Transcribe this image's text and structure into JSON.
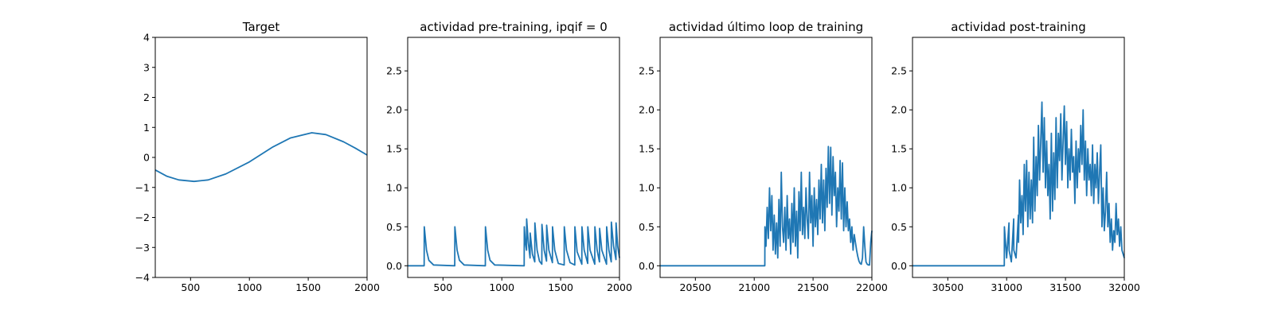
{
  "chart_data": [
    {
      "type": "line",
      "title": "Target",
      "xlim": [
        200,
        2000
      ],
      "ylim": [
        -4,
        4
      ],
      "xticks": [
        500,
        1000,
        1500,
        2000
      ],
      "xtick_labels": [
        "500",
        "1000",
        "1500",
        "2000"
      ],
      "yticks": [
        -4,
        -3,
        -2,
        -1,
        0,
        1,
        2,
        3,
        4
      ],
      "ytick_labels": [
        "−4",
        "−3",
        "−2",
        "−1",
        "0",
        "1",
        "2",
        "3",
        "4"
      ],
      "series": [
        {
          "x": [
            200,
            300,
            400,
            530,
            650,
            800,
            1000,
            1200,
            1350,
            1530,
            1650,
            1800,
            1900,
            2000
          ],
          "y": [
            -0.42,
            -0.63,
            -0.75,
            -0.8,
            -0.75,
            -0.55,
            -0.15,
            0.35,
            0.65,
            0.82,
            0.76,
            0.52,
            0.31,
            0.08
          ]
        }
      ]
    },
    {
      "type": "line",
      "title": "actividad pre-training, ipqif = 0",
      "xlim": [
        200,
        2000
      ],
      "ylim": [
        -0.15,
        2.93
      ],
      "xticks": [
        500,
        1000,
        1500,
        2000
      ],
      "xtick_labels": [
        "500",
        "1000",
        "1500",
        "2000"
      ],
      "yticks": [
        0.0,
        0.5,
        1.0,
        1.5,
        2.0,
        2.5
      ],
      "ytick_labels": [
        "0.0",
        "0.5",
        "1.0",
        "1.5",
        "2.0",
        "2.5"
      ],
      "series": [
        {
          "x": [
            200,
            340,
            341,
            360,
            380,
            420,
            600,
            601,
            620,
            640,
            680,
            860,
            861,
            880,
            900,
            940,
            1190,
            1191,
            1200,
            1210,
            1211,
            1225,
            1240,
            1241,
            1260,
            1280,
            1281,
            1300,
            1320,
            1340,
            1341,
            1360,
            1380,
            1381,
            1400,
            1430,
            1431,
            1450,
            1480,
            1530,
            1531,
            1550,
            1580,
            1620,
            1621,
            1640,
            1680,
            1681,
            1700,
            1730,
            1731,
            1750,
            1790,
            1791,
            1810,
            1830,
            1831,
            1850,
            1890,
            1891,
            1910,
            1930,
            1931,
            1950,
            1970,
            1971,
            1985,
            2000
          ],
          "y": [
            0,
            0,
            0.5,
            0.2,
            0.07,
            0.01,
            0,
            0.5,
            0.2,
            0.07,
            0.01,
            0,
            0.5,
            0.2,
            0.07,
            0.01,
            0,
            0.5,
            0.3,
            0.2,
            0.6,
            0.3,
            0.1,
            0.42,
            0.15,
            0.05,
            0.55,
            0.2,
            0.06,
            0.02,
            0.53,
            0.2,
            0.06,
            0.52,
            0.2,
            0.04,
            0.5,
            0.2,
            0.03,
            0.01,
            0.5,
            0.2,
            0.04,
            0.01,
            0.5,
            0.18,
            0.02,
            0.5,
            0.2,
            0.03,
            0.5,
            0.2,
            0.02,
            0.5,
            0.2,
            0.05,
            0.48,
            0.2,
            0.02,
            0.5,
            0.2,
            0.05,
            0.56,
            0.25,
            0.08,
            0.55,
            0.25,
            0.1
          ]
        }
      ]
    },
    {
      "type": "line",
      "title": "actividad último loop de training",
      "xlim": [
        20200,
        22000
      ],
      "ylim": [
        -0.15,
        2.93
      ],
      "xticks": [
        20500,
        21000,
        21500,
        22000
      ],
      "xtick_labels": [
        "20500",
        "21000",
        "21500",
        "22000"
      ],
      "yticks": [
        0.0,
        0.5,
        1.0,
        1.5,
        2.0,
        2.5
      ],
      "ytick_labels": [
        "0.0",
        "0.5",
        "1.0",
        "1.5",
        "2.0",
        "2.5"
      ],
      "series": [
        {
          "x": [
            20200,
            21090,
            21091,
            21100,
            21110,
            21120,
            21130,
            21140,
            21150,
            21160,
            21170,
            21180,
            21190,
            21200,
            21210,
            21220,
            21230,
            21240,
            21250,
            21260,
            21270,
            21280,
            21290,
            21300,
            21310,
            21320,
            21330,
            21340,
            21350,
            21360,
            21370,
            21380,
            21390,
            21400,
            21410,
            21420,
            21430,
            21440,
            21450,
            21460,
            21470,
            21480,
            21490,
            21500,
            21510,
            21520,
            21530,
            21540,
            21550,
            21560,
            21570,
            21580,
            21590,
            21600,
            21610,
            21620,
            21630,
            21640,
            21650,
            21660,
            21670,
            21680,
            21690,
            21700,
            21710,
            21720,
            21730,
            21740,
            21750,
            21760,
            21770,
            21780,
            21790,
            21800,
            21810,
            21820,
            21830,
            21840,
            21850,
            21860,
            21870,
            21880,
            21890,
            21900,
            21910,
            21920,
            21930,
            21940,
            21950,
            21960,
            21970,
            21980,
            21990,
            22000
          ],
          "y": [
            0,
            0,
            0.5,
            0.25,
            0.75,
            0.35,
            1.0,
            0.45,
            0.9,
            0.2,
            0.65,
            0.15,
            0.55,
            0.1,
            0.85,
            0.25,
            1.2,
            0.5,
            0.3,
            0.75,
            0.2,
            0.9,
            0.35,
            0.6,
            0.15,
            0.8,
            0.3,
            1.0,
            0.25,
            0.7,
            0.1,
            0.95,
            0.45,
            1.2,
            0.4,
            0.75,
            0.35,
            1.0,
            0.6,
            0.35,
            1.2,
            0.55,
            0.9,
            0.25,
            1.0,
            0.5,
            0.85,
            0.4,
            1.1,
            0.6,
            1.3,
            0.55,
            1.1,
            0.45,
            1.25,
            0.75,
            1.53,
            0.8,
            1.52,
            0.65,
            1.4,
            0.9,
            1.2,
            0.5,
            1.0,
            0.7,
            1.35,
            0.6,
            1.32,
            0.45,
            1.0,
            0.5,
            0.82,
            0.45,
            0.6,
            0.3,
            0.5,
            0.2,
            0.4,
            0.3,
            0.2,
            0.12,
            0.06,
            0.03,
            0.02,
            0.1,
            0.5,
            0.25,
            0.05,
            0.02,
            0.01,
            0.01,
            0.3,
            0.45
          ]
        }
      ]
    },
    {
      "type": "line",
      "title": "actividad post-training",
      "xlim": [
        30200,
        32000
      ],
      "ylim": [
        -0.15,
        2.93
      ],
      "xticks": [
        30500,
        31000,
        31500,
        32000
      ],
      "xtick_labels": [
        "30500",
        "31000",
        "31500",
        "32000"
      ],
      "yticks": [
        0.0,
        0.5,
        1.0,
        1.5,
        2.0,
        2.5
      ],
      "ytick_labels": [
        "0.0",
        "0.5",
        "1.0",
        "1.5",
        "2.0",
        "2.5"
      ],
      "series": [
        {
          "x": [
            30200,
            30980,
            30981,
            31000,
            31020,
            31021,
            31040,
            31060,
            31061,
            31080,
            31100,
            31101,
            31110,
            31120,
            31130,
            31140,
            31150,
            31160,
            31170,
            31180,
            31190,
            31200,
            31210,
            31220,
            31230,
            31240,
            31250,
            31260,
            31270,
            31280,
            31290,
            31300,
            31310,
            31320,
            31330,
            31340,
            31350,
            31360,
            31370,
            31380,
            31390,
            31400,
            31410,
            31420,
            31430,
            31440,
            31450,
            31460,
            31470,
            31480,
            31490,
            31500,
            31510,
            31520,
            31530,
            31540,
            31550,
            31560,
            31570,
            31580,
            31590,
            31600,
            31610,
            31620,
            31630,
            31640,
            31650,
            31660,
            31670,
            31680,
            31690,
            31700,
            31710,
            31720,
            31730,
            31740,
            31750,
            31760,
            31770,
            31780,
            31790,
            31800,
            31810,
            31820,
            31830,
            31840,
            31850,
            31860,
            31870,
            31880,
            31890,
            31900,
            31910,
            31920,
            31930,
            31940,
            31950,
            31960,
            31970,
            31980,
            31990,
            32000
          ],
          "y": [
            0,
            0,
            0.5,
            0.1,
            0.55,
            0.2,
            0.05,
            0.6,
            0.2,
            0.1,
            0.65,
            0.3,
            1.1,
            0.55,
            0.9,
            0.4,
            1.3,
            0.7,
            1.35,
            0.5,
            1.2,
            0.6,
            1.1,
            0.55,
            1.65,
            0.7,
            1.4,
            0.9,
            1.8,
            1.1,
            1.6,
            2.1,
            1.2,
            1.9,
            1.0,
            1.6,
            0.9,
            1.3,
            0.6,
            1.7,
            0.7,
            1.45,
            0.85,
            1.9,
            1.0,
            1.7,
            1.35,
            1.95,
            1.1,
            1.6,
            2.05,
            1.3,
            1.85,
            1.0,
            1.5,
            1.1,
            1.75,
            1.2,
            1.4,
            0.8,
            1.6,
            1.0,
            1.5,
            1.2,
            1.8,
            1.3,
            2.0,
            1.1,
            1.6,
            0.9,
            1.5,
            1.1,
            1.3,
            0.9,
            1.55,
            0.8,
            1.3,
            1.0,
            1.45,
            0.8,
            1.2,
            1.55,
            0.5,
            1.0,
            0.45,
            0.7,
            1.2,
            0.5,
            0.8,
            0.3,
            0.6,
            0.2,
            0.45,
            0.3,
            0.8,
            0.4,
            0.6,
            0.25,
            0.5,
            0.2,
            0.15,
            0.1
          ]
        }
      ]
    }
  ]
}
